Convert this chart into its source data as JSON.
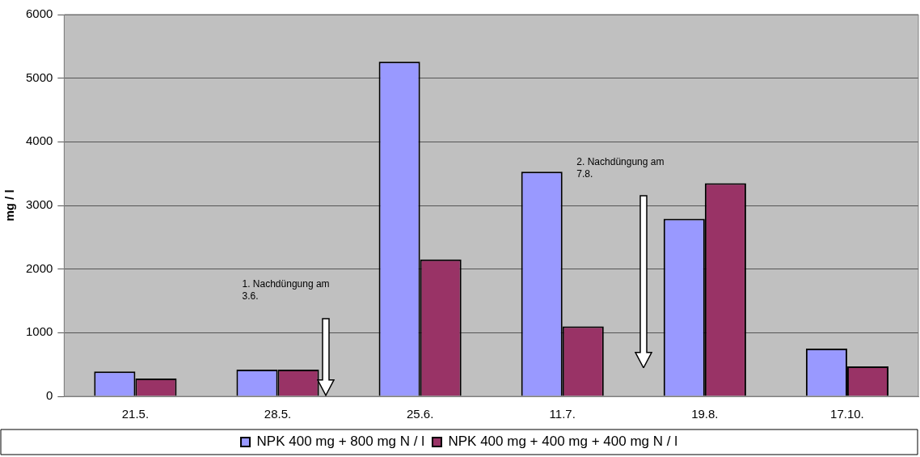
{
  "chart_data": {
    "type": "bar",
    "ylabel": "mg / l",
    "categories": [
      "21.5.",
      "28.5.",
      "25.6.",
      "11.7.",
      "19.8.",
      "17.10."
    ],
    "series": [
      {
        "name": "NPK 400 mg + 800 mg N / l",
        "color": "#9999ff",
        "values": [
          390,
          420,
          5260,
          3530,
          2790,
          750
        ]
      },
      {
        "name": "NPK 400 mg + 400 mg + 400 mg N / l",
        "color": "#993366",
        "values": [
          280,
          420,
          2150,
          1100,
          3350,
          470
        ]
      }
    ],
    "ylim": [
      0,
      6000
    ],
    "yticks": [
      0,
      1000,
      2000,
      3000,
      4000,
      5000,
      6000
    ],
    "grid": "y",
    "legend": "bottom",
    "annotations": [
      "1. Nachdüngung am\n3.6.",
      "2. Nachdüngung am\n7.8."
    ]
  }
}
